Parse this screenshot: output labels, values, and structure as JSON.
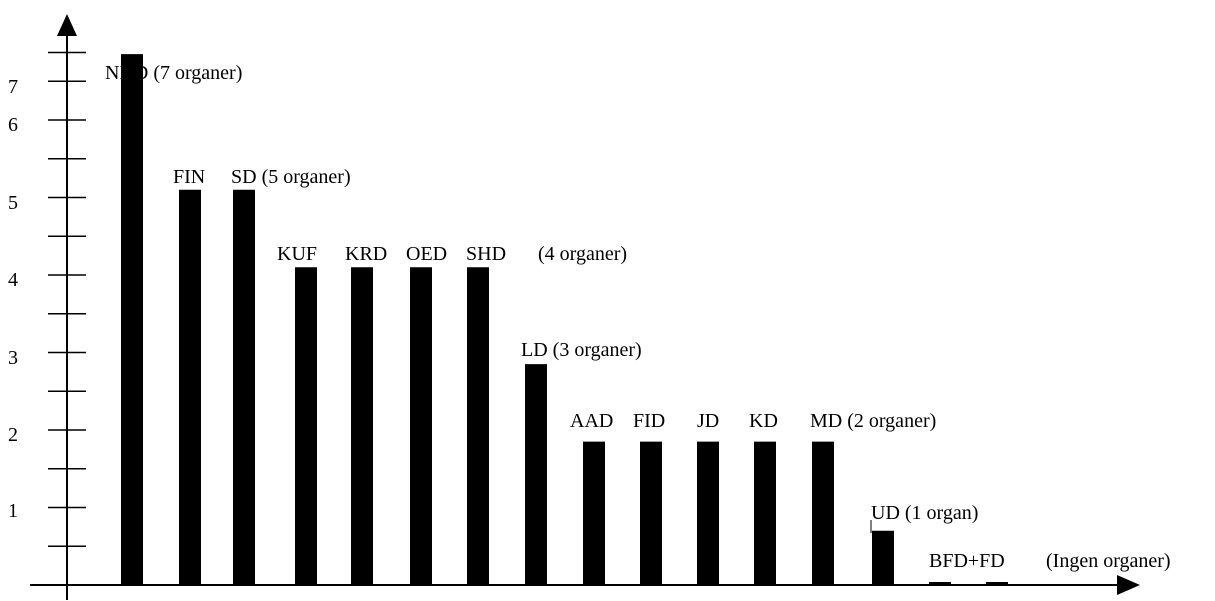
{
  "chart_data": {
    "type": "bar",
    "ylim": [
      0,
      7
    ],
    "y_tick_labels": [
      "1",
      "2",
      "3",
      "4",
      "5",
      "6",
      "7"
    ],
    "bar_color": "#000000",
    "bars": [
      {
        "category": "NHD",
        "value": 6.85
      },
      {
        "category": "FIN",
        "value": 5.1
      },
      {
        "category": "SD",
        "value": 5.1
      },
      {
        "category": "KUF",
        "value": 4.1
      },
      {
        "category": "KRD",
        "value": 4.1
      },
      {
        "category": "OED",
        "value": 4.1
      },
      {
        "category": "SHD",
        "value": 4.1
      },
      {
        "category": "LD",
        "value": 2.85
      },
      {
        "category": "AAD",
        "value": 1.85
      },
      {
        "category": "FID",
        "value": 1.85
      },
      {
        "category": "JD",
        "value": 1.85
      },
      {
        "category": "KD",
        "value": 1.85
      },
      {
        "category": "MD",
        "value": 1.85
      },
      {
        "category": "UD",
        "value": 0.7
      },
      {
        "category": "BFD",
        "value": 0.03
      },
      {
        "category": "FD",
        "value": 0.03
      }
    ],
    "labels": [
      "NHD (7 organer)",
      "FIN",
      "SD (5 organer)",
      "KUF",
      "KRD",
      "OED",
      "SHD",
      "(4 organer)",
      "LD (3 organer)",
      "AAD",
      "FID",
      "JD",
      "KD",
      "MD (2 organer)",
      "UD (1 organ)",
      "BFD+FD",
      "(Ingen organer)"
    ]
  }
}
